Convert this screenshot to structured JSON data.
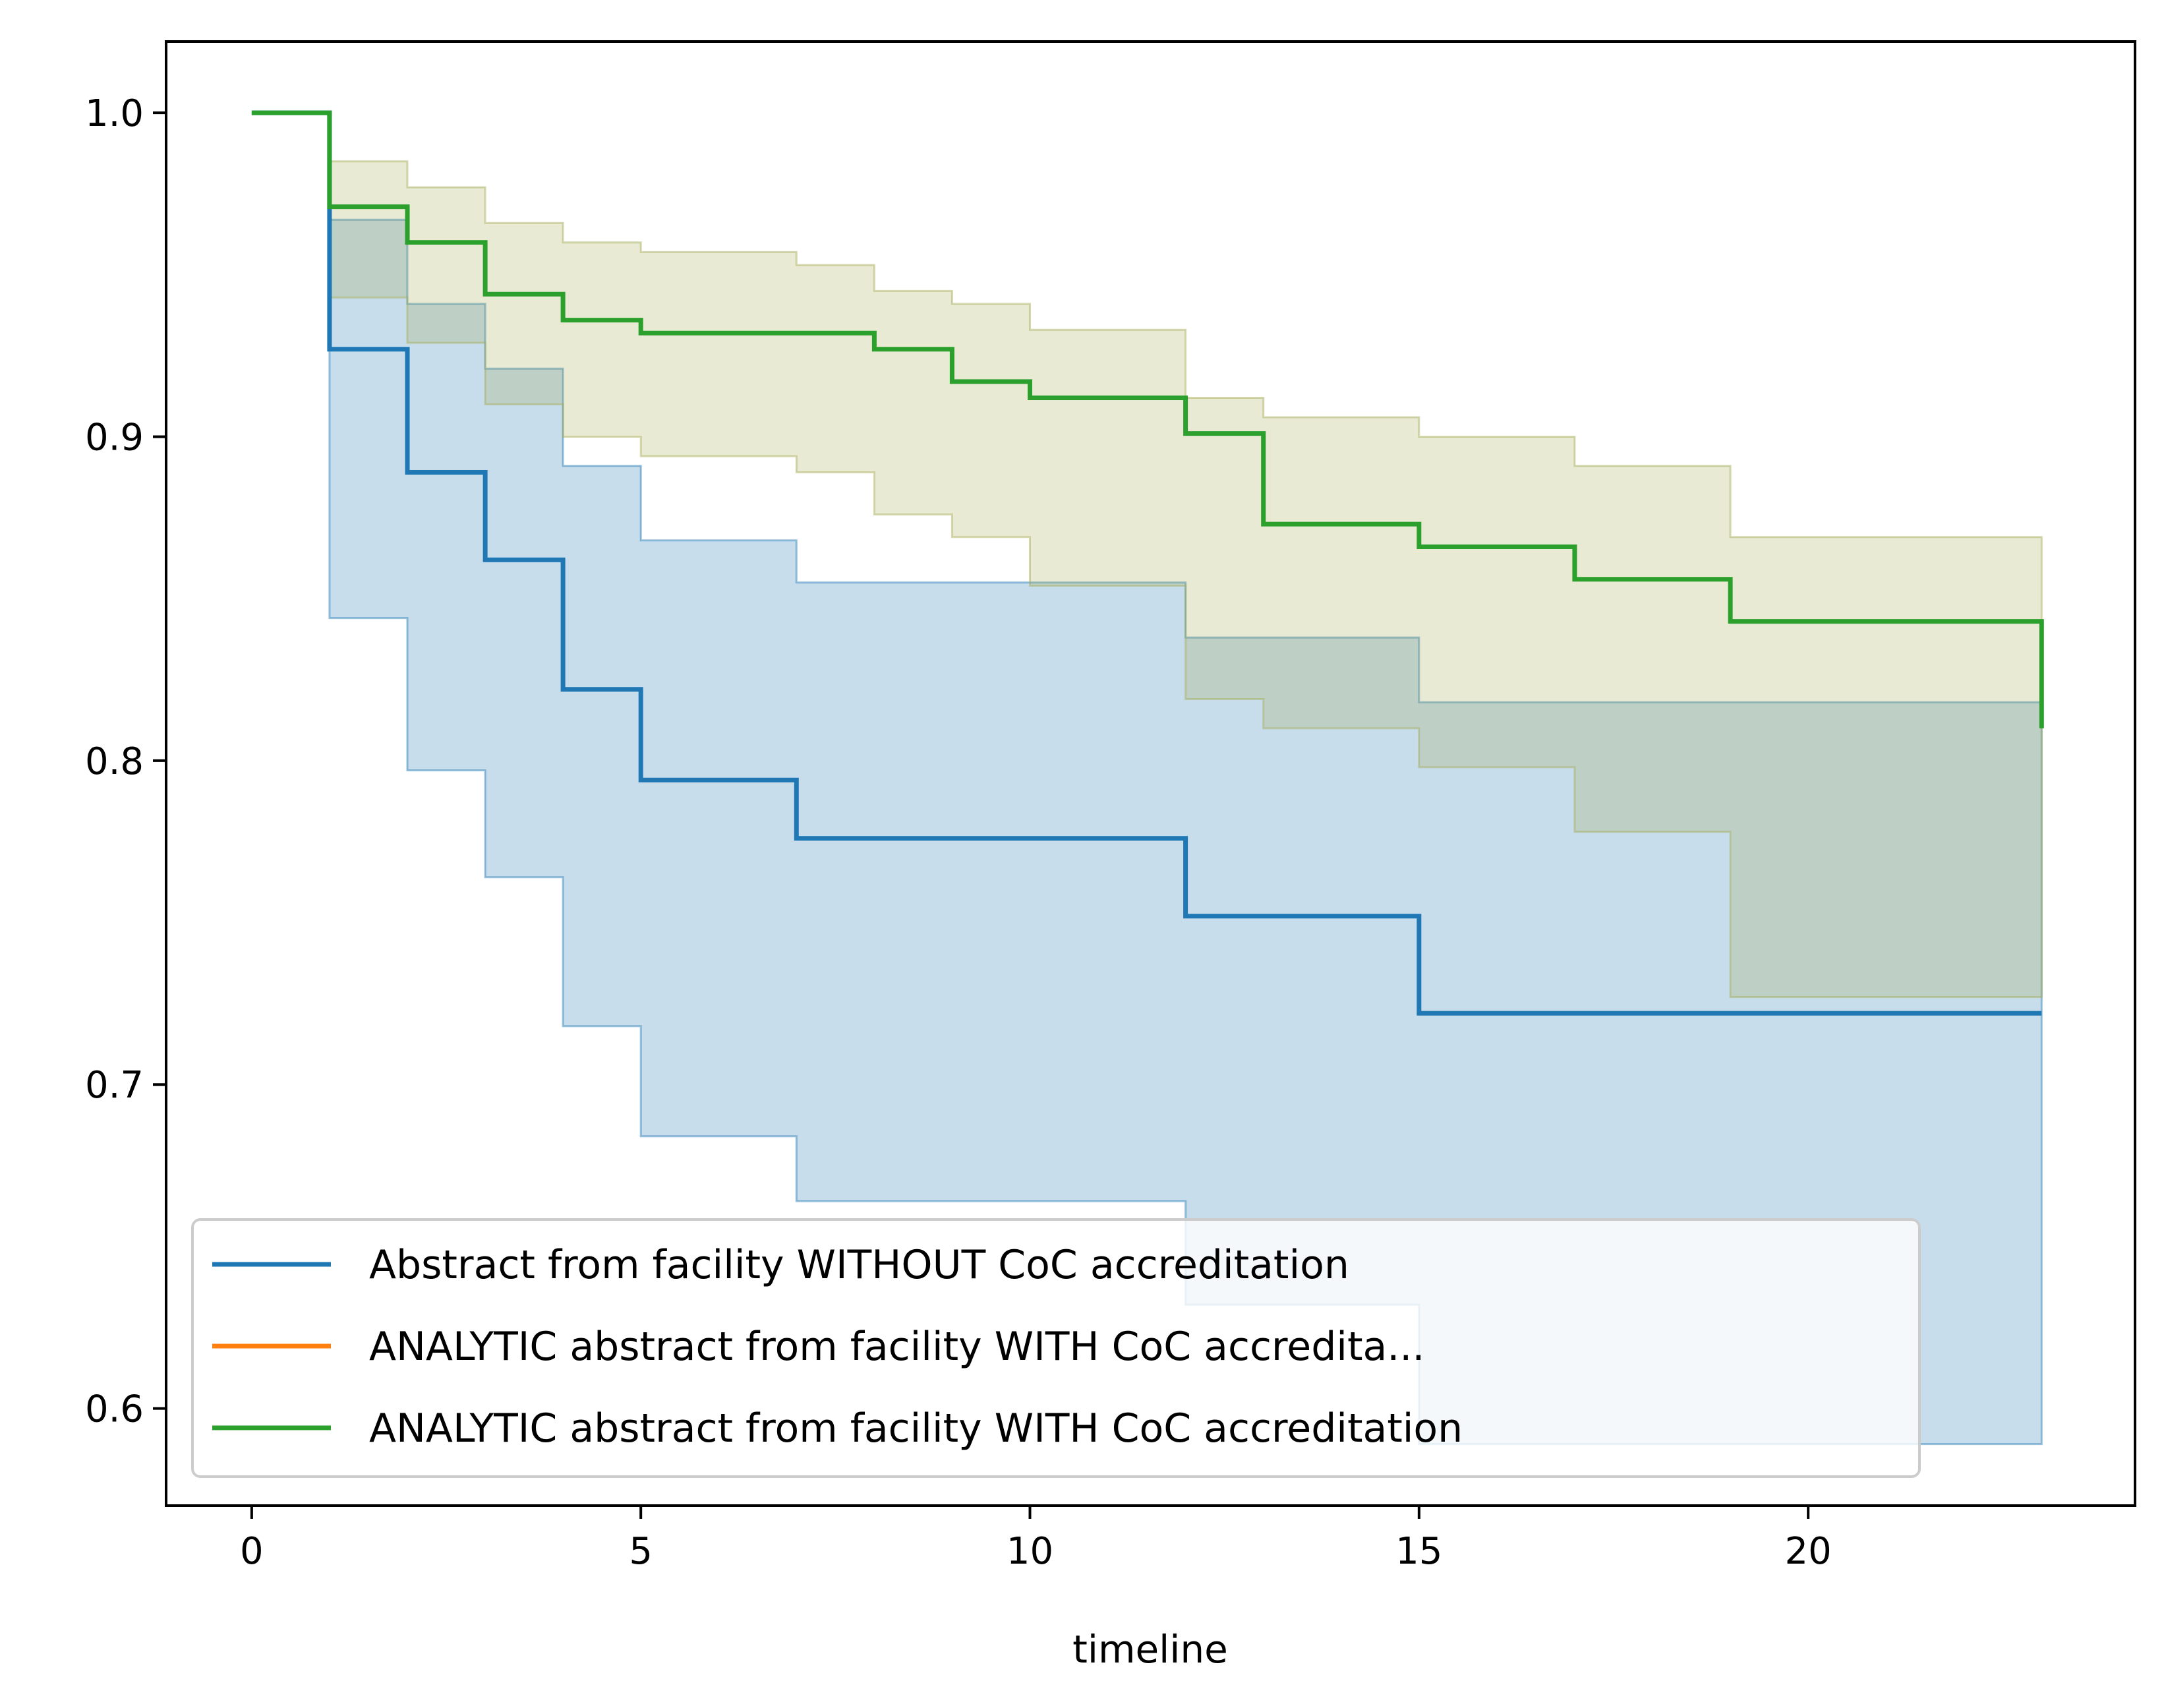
{
  "chart_data": {
    "type": "line",
    "xlabel": "timeline",
    "ylabel": "",
    "xlim": [
      -1.1,
      24.2
    ],
    "ylim": [
      0.57,
      1.022
    ],
    "xticks": [
      0,
      5,
      10,
      15,
      20
    ],
    "yticks": [
      0.6,
      0.7,
      0.8,
      0.9,
      1.0
    ],
    "xtick_labels": [
      "0",
      "5",
      "10",
      "15",
      "20"
    ],
    "ytick_labels": [
      "0.6",
      "0.7",
      "0.8",
      "0.9",
      "1.0"
    ],
    "grid": false,
    "legend_position": "lower-left",
    "series": [
      {
        "name": "Abstract from facility WITHOUT CoC accreditation",
        "color": "#1f77b4",
        "band_color": "#1f77b4",
        "x": [
          0,
          1,
          2,
          3,
          4,
          5,
          7,
          12,
          15,
          23
        ],
        "y": [
          1.0,
          0.927,
          0.889,
          0.862,
          0.822,
          0.794,
          0.776,
          0.752,
          0.722,
          0.722
        ],
        "ci_upper": [
          1.0,
          0.967,
          0.941,
          0.921,
          0.891,
          0.868,
          0.855,
          0.838,
          0.818,
          0.818
        ],
        "ci_lower": [
          1.0,
          0.844,
          0.797,
          0.764,
          0.718,
          0.684,
          0.664,
          0.632,
          0.589,
          0.589
        ]
      },
      {
        "name": "ANALYTIC abstract from facility WITH CoC accredita...",
        "color": "#ff7f0e",
        "band_color": "#ff7f0e",
        "x": [],
        "y": [],
        "ci_upper": [],
        "ci_lower": []
      },
      {
        "name": "ANALYTIC abstract from facility WITH CoC accreditation",
        "color": "#2ca02c",
        "band_color": "#a5ab55",
        "x": [
          0,
          1,
          2,
          3,
          4,
          5,
          7,
          8,
          9,
          10,
          12,
          13,
          15,
          17,
          19,
          23
        ],
        "y": [
          1.0,
          0.971,
          0.96,
          0.944,
          0.936,
          0.932,
          0.932,
          0.927,
          0.917,
          0.912,
          0.901,
          0.873,
          0.866,
          0.856,
          0.843,
          0.81
        ],
        "ci_upper": [
          1.0,
          0.985,
          0.977,
          0.966,
          0.96,
          0.957,
          0.953,
          0.945,
          0.941,
          0.933,
          0.912,
          0.906,
          0.9,
          0.891,
          0.869,
          0.869
        ],
        "ci_lower": [
          1.0,
          0.943,
          0.929,
          0.91,
          0.9,
          0.894,
          0.889,
          0.876,
          0.869,
          0.854,
          0.819,
          0.81,
          0.798,
          0.778,
          0.727,
          0.727
        ]
      }
    ]
  }
}
